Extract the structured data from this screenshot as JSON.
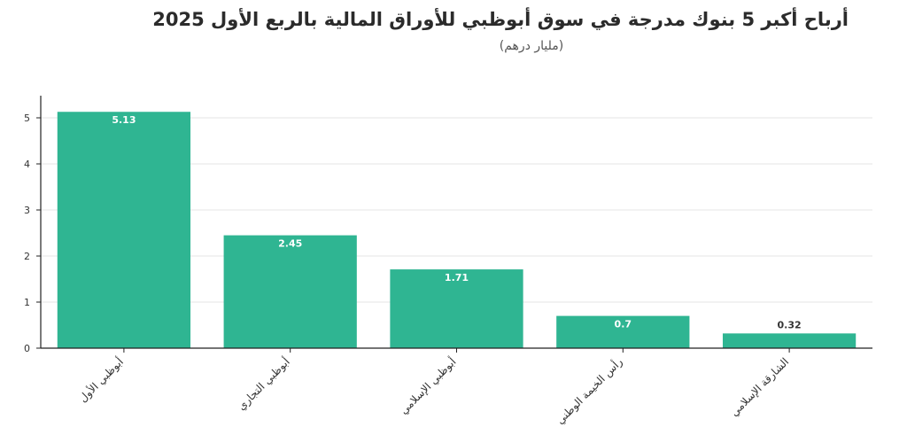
{
  "chart_data": {
    "type": "bar",
    "title": "أرباح أكبر 5 بنوك مدرجة في سوق أبوظبي للأوراق المالية بالربع الأول 2025",
    "subtitle": "(مليار درهم)",
    "xlabel": "",
    "ylabel": "",
    "categories": [
      "أبوظبي الأول",
      "أبوظبي التجاري",
      "أبوظبي الإسلامي",
      "رأس الخيمة الوطني",
      "الشارقة الإسلامي"
    ],
    "values": [
      5.13,
      2.45,
      1.71,
      0.7,
      0.32
    ],
    "value_labels": [
      "5.13",
      "2.45",
      "1.71",
      "0.7",
      "0.32"
    ],
    "y_ticks": [
      "0",
      "1",
      "2",
      "3",
      "4",
      "5"
    ],
    "ylim": [
      0,
      5.5
    ],
    "grid": true,
    "legend": "none",
    "colors": {
      "bar": "#2fb592",
      "label_inside": "#ffffff",
      "label_outside": "#333333",
      "grid": "#e6e6e6",
      "axis": "#222222"
    }
  }
}
